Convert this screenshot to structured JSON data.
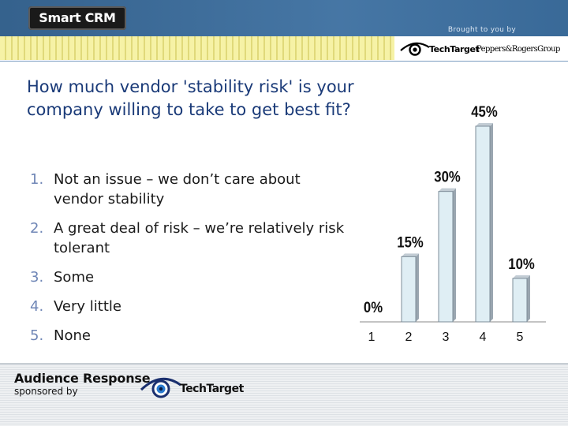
{
  "header": {
    "app_title": "Smart CRM",
    "brought_by": "Brought to you by",
    "sponsor_1": "TechTarget",
    "sponsor_2": "Peppers&RogersGroup"
  },
  "slide": {
    "question": "How much vendor 'stability risk' is your company willing to take to get best fit?",
    "options": [
      {
        "num": "1.",
        "text": "Not an issue – we don’t care about vendor stability"
      },
      {
        "num": "2.",
        "text": "A great deal of risk – we’re relatively risk tolerant"
      },
      {
        "num": "3.",
        "text": "Some"
      },
      {
        "num": "4.",
        "text": "Very little"
      },
      {
        "num": "5.",
        "text": "None"
      }
    ]
  },
  "chart_data": {
    "type": "bar",
    "categories": [
      "1",
      "2",
      "3",
      "4",
      "5"
    ],
    "values": [
      0,
      15,
      30,
      45,
      10
    ],
    "labels": [
      "0%",
      "15%",
      "30%",
      "45%",
      "10%"
    ],
    "ylim": [
      0,
      45
    ],
    "grid": false,
    "bar_color": "#dfeef4",
    "bar_side_color": "#9aa6b0"
  },
  "footer": {
    "title": "Audience Response",
    "sponsored": "sponsored by",
    "sponsor": "TechTarget"
  }
}
